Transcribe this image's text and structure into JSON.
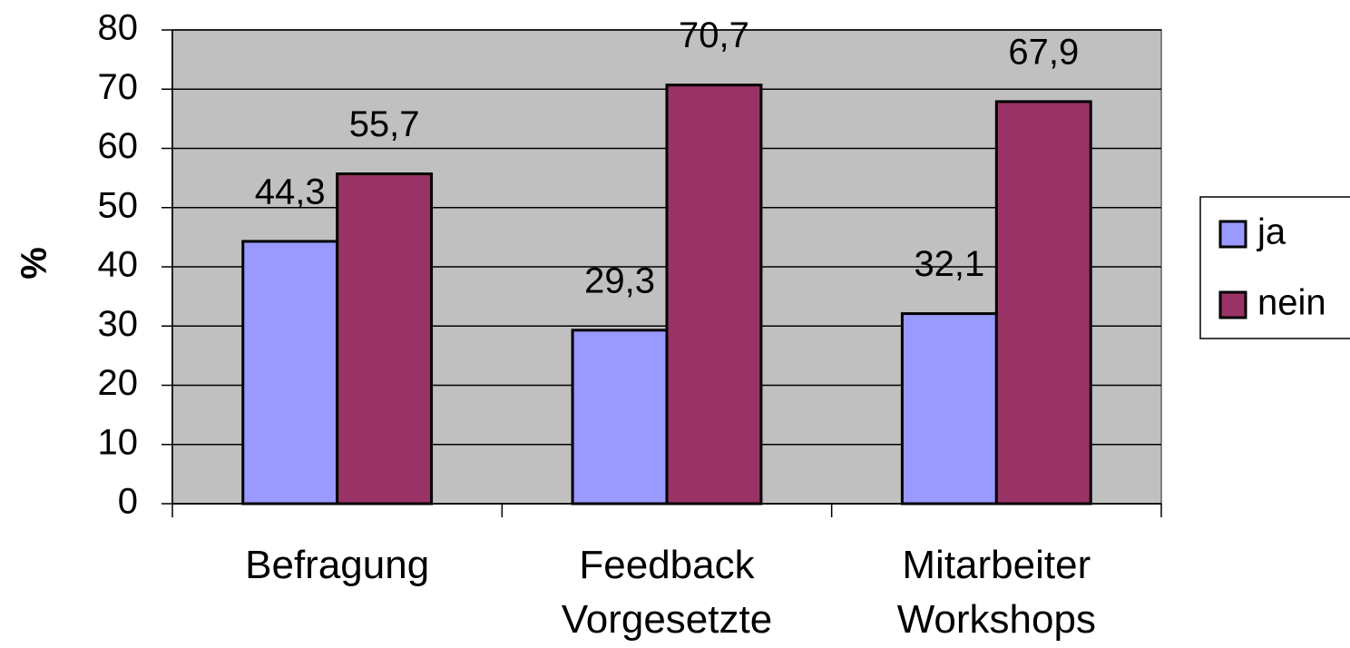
{
  "chart_data": {
    "type": "bar",
    "y_label": "%",
    "categories": [
      "Befragung",
      "Feedback Vorgesetzte",
      "Mitarbeiter Workshops"
    ],
    "series": [
      {
        "name": "ja",
        "color": "#9999ff",
        "values": [
          44.3,
          29.3,
          32.1
        ],
        "value_labels": [
          "44,3",
          "29,3",
          "32,1"
        ]
      },
      {
        "name": "nein",
        "color": "#993366",
        "values": [
          55.7,
          70.7,
          67.9
        ],
        "value_labels": [
          "55,7",
          "70,7",
          "67,9"
        ]
      }
    ],
    "ylim": [
      0,
      80
    ],
    "yticks": [
      0,
      10,
      20,
      30,
      40,
      50,
      60,
      70,
      80
    ],
    "grid": true,
    "legend": "right",
    "plot_background": "#c0c0c0"
  }
}
